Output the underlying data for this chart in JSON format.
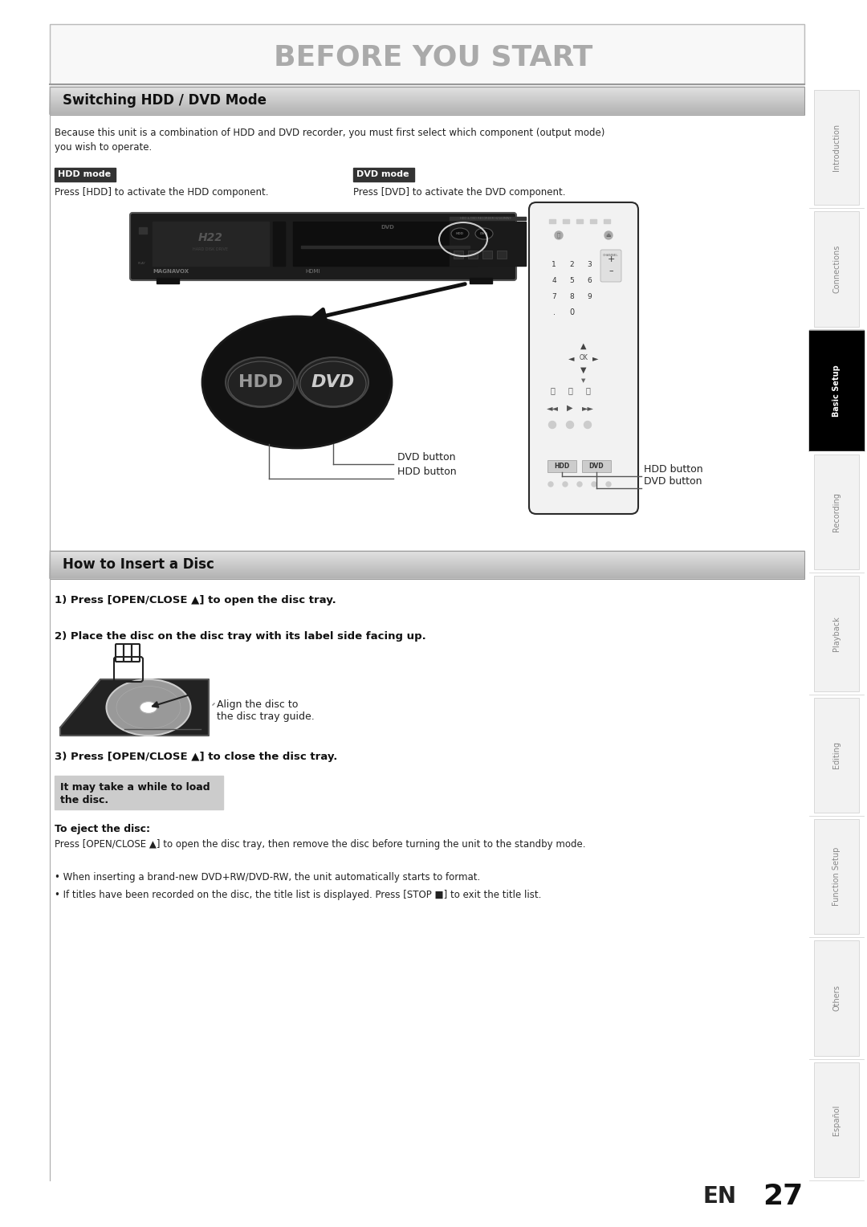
{
  "page_bg": "#ffffff",
  "title_text": "BEFORE YOU START",
  "section1_title": "Switching HDD / DVD Mode",
  "section2_title": "How to Insert a Disc",
  "sidebar_labels": [
    "Introduction",
    "Connections",
    "Basic Setup",
    "Recording",
    "Playback",
    "Editing",
    "Function Setup",
    "Others",
    "Español"
  ],
  "sidebar_active": "Basic Setup",
  "page_number": "27",
  "en_label": "EN",
  "body_text1": "Because this unit is a combination of HDD and DVD recorder, you must first select which component (output mode)\nyou wish to operate.",
  "hdd_mode_label": "HDD mode",
  "dvd_mode_label": "DVD mode",
  "hdd_press_text": "Press [HDD] to activate the HDD component.",
  "dvd_press_text": "Press [DVD] to activate the DVD component.",
  "dvd_button_label": "DVD button",
  "hdd_button_label": "HDD button",
  "hdd_remote_button_label": "HDD button",
  "dvd_remote_button_label": "DVD button",
  "step1_text": "1) Press [OPEN/CLOSE ▲] to open the disc tray.",
  "step2_text": "2) Place the disc on the disc tray with its label side facing up.",
  "align_text": "Align the disc to\nthe disc tray guide.",
  "step3_text": "3) Press [OPEN/CLOSE ▲] to close the disc tray.",
  "note_line1": "It may take a while to load",
  "note_line2": "the disc.",
  "eject_title": "To eject the disc:",
  "eject_text": "Press [OPEN/CLOSE ▲] to open the disc tray, then remove the disc before turning the unit to the standby mode.",
  "bullet1": "• When inserting a brand-new DVD+RW/DVD-RW, the unit automatically starts to format.",
  "bullet2": "• If titles have been recorded on the disc, the title list is displayed. Press [STOP ■] to exit the title list."
}
